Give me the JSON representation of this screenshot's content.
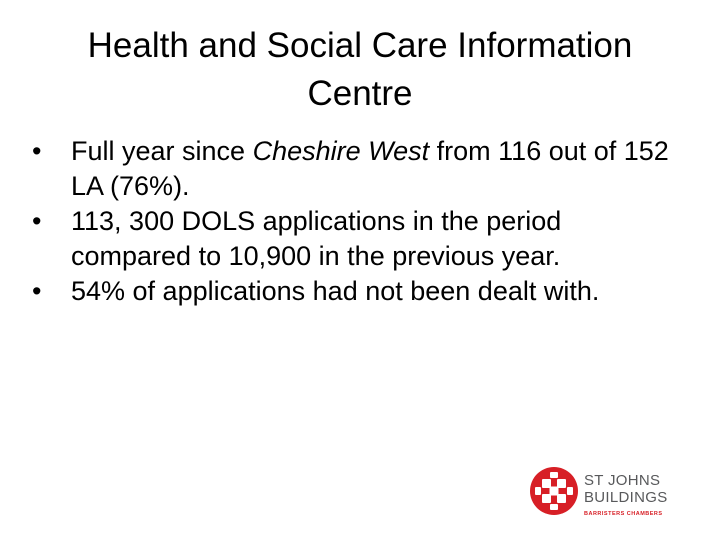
{
  "slide": {
    "title_line1": "Health and Social Care Information",
    "title_line2": "Centre",
    "bullet_char": "•",
    "bullets": [
      {
        "pre": "Full year since ",
        "italic": "Cheshire West",
        "post": " from 116 out of 152 LA (76%)."
      },
      {
        "text": "113, 300 DOLS applications in the period compared to 10,900 in the previous year."
      },
      {
        "text": "54% of applications had not been dealt with."
      }
    ]
  },
  "logo": {
    "line1": "ST JOHNS",
    "line2": "BUILDINGS",
    "tagline": "BARRISTERS CHAMBERS",
    "brand_color": "#d71f26",
    "text_color": "#58595b",
    "icon": "cross-pattern-logo-icon"
  }
}
